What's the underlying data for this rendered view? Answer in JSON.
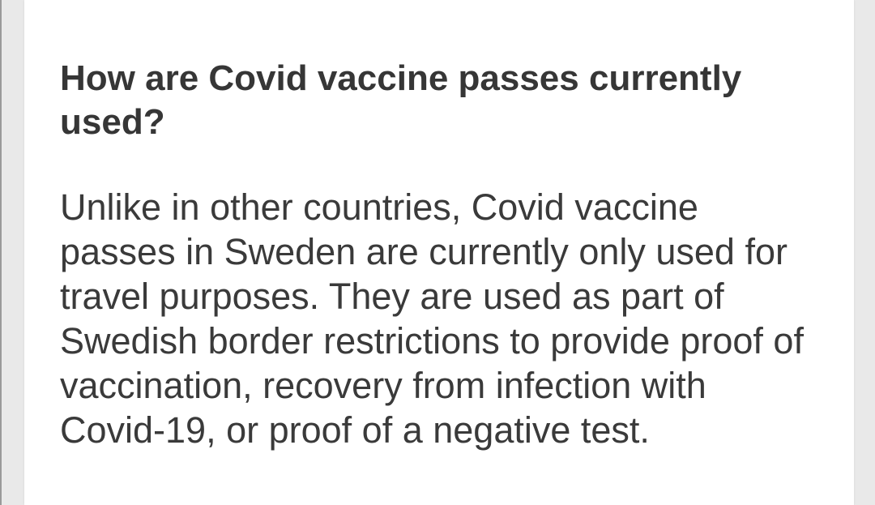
{
  "article": {
    "heading": "How are Covid vaccine passes currently used?",
    "paragraph": "Unlike in other countries, Covid vaccine passes in Sweden are currently only used for travel purposes. They are used as part of Swedish border restrictions to provide proof of vaccination, recovery from infection with Covid-19, or proof of a negative test."
  },
  "colors": {
    "page_background": "#e9e9e9",
    "card_background": "#ffffff",
    "heading_text": "#363636",
    "body_text": "#3a3a3a"
  }
}
